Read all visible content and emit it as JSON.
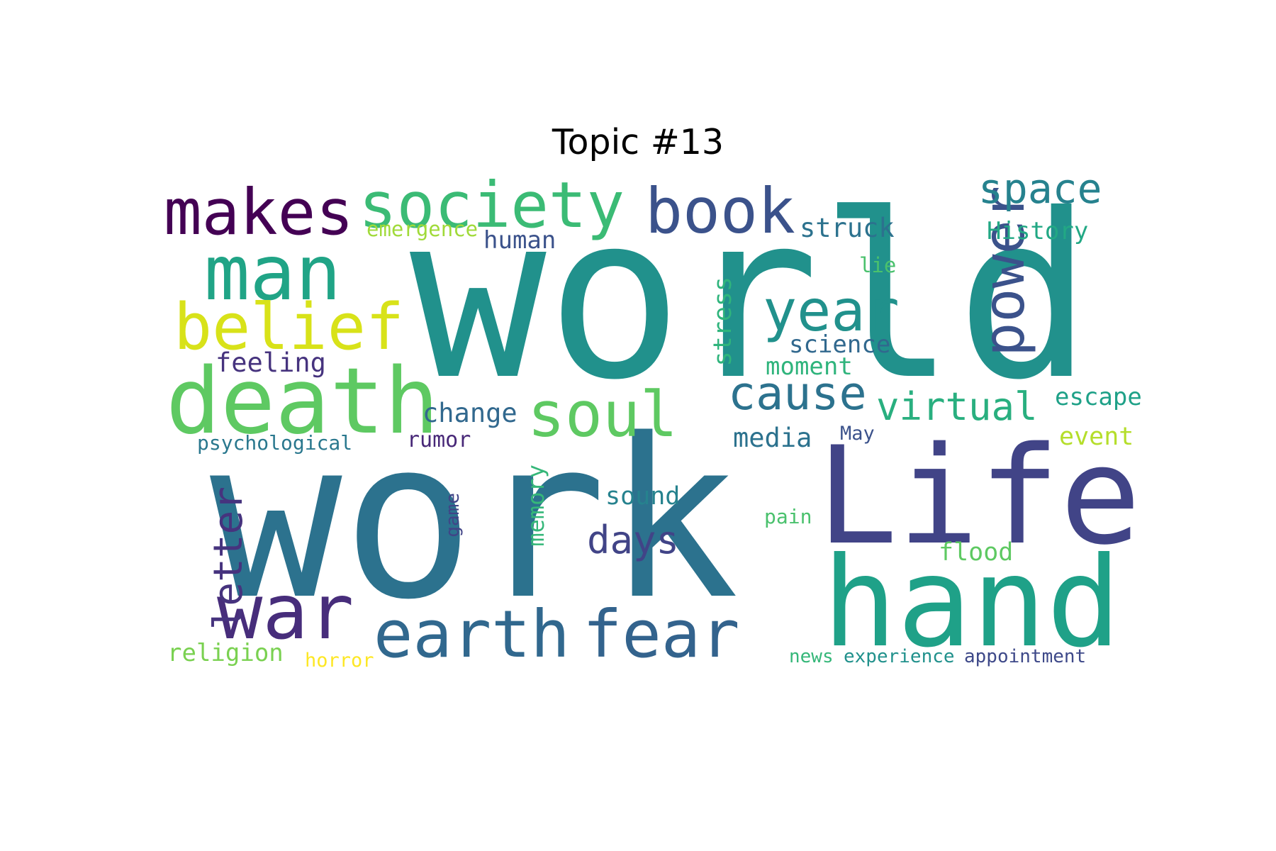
{
  "title": "Topic #13",
  "words": [
    {
      "text": "world",
      "color": "#21918c",
      "vertical": false
    },
    {
      "text": "work",
      "color": "#2c728e",
      "vertical": false
    },
    {
      "text": "Life",
      "color": "#414487",
      "vertical": false
    },
    {
      "text": "hand",
      "color": "#1fa188",
      "vertical": false
    },
    {
      "text": "earth",
      "color": "#31688e",
      "vertical": false
    },
    {
      "text": "fear",
      "color": "#33638d",
      "vertical": false
    },
    {
      "text": "death",
      "color": "#5ec962",
      "vertical": false
    },
    {
      "text": "man",
      "color": "#20a486",
      "vertical": false
    },
    {
      "text": "war",
      "color": "#472d7b",
      "vertical": false
    },
    {
      "text": "society",
      "color": "#3bbb75",
      "vertical": false
    },
    {
      "text": "makes",
      "color": "#440154",
      "vertical": false
    },
    {
      "text": "book",
      "color": "#3b528b",
      "vertical": false
    },
    {
      "text": "belief",
      "color": "#d8e219",
      "vertical": false
    },
    {
      "text": "year",
      "color": "#21918c",
      "vertical": false
    },
    {
      "text": "power",
      "color": "#3b528b",
      "vertical": true
    },
    {
      "text": "soul",
      "color": "#5ec962",
      "vertical": false
    },
    {
      "text": "cause",
      "color": "#2c728e",
      "vertical": false
    },
    {
      "text": "space",
      "color": "#26828e",
      "vertical": false
    },
    {
      "text": "virtual",
      "color": "#29af7f",
      "vertical": false
    },
    {
      "text": "days",
      "color": "#414487",
      "vertical": false
    },
    {
      "text": "letter",
      "color": "#46337e",
      "vertical": true
    },
    {
      "text": "struck",
      "color": "#2c728e",
      "vertical": false
    },
    {
      "text": "History",
      "color": "#22a884",
      "vertical": false
    },
    {
      "text": "human",
      "color": "#3b528b",
      "vertical": false
    },
    {
      "text": "emergence",
      "color": "#a0da39",
      "vertical": false
    },
    {
      "text": "lie",
      "color": "#4ac16d",
      "vertical": false
    },
    {
      "text": "science",
      "color": "#31688e",
      "vertical": false
    },
    {
      "text": "moment",
      "color": "#2fb47c",
      "vertical": false
    },
    {
      "text": "stress",
      "color": "#2fb47c",
      "vertical": true
    },
    {
      "text": "feeling",
      "color": "#46337e",
      "vertical": false
    },
    {
      "text": "change",
      "color": "#31688e",
      "vertical": false
    },
    {
      "text": "escape",
      "color": "#1fa188",
      "vertical": false
    },
    {
      "text": "media",
      "color": "#2c728e",
      "vertical": false
    },
    {
      "text": "May",
      "color": "#3b528b",
      "vertical": false
    },
    {
      "text": "event",
      "color": "#b5de2b",
      "vertical": false
    },
    {
      "text": "psychological",
      "color": "#2a788e",
      "vertical": false
    },
    {
      "text": "rumor",
      "color": "#482878",
      "vertical": false
    },
    {
      "text": "sound",
      "color": "#26828e",
      "vertical": false
    },
    {
      "text": "memory",
      "color": "#35b779",
      "vertical": true
    },
    {
      "text": "game",
      "color": "#414487",
      "vertical": true
    },
    {
      "text": "pain",
      "color": "#4ac16d",
      "vertical": false
    },
    {
      "text": "flood",
      "color": "#5ec962",
      "vertical": false
    },
    {
      "text": "religion",
      "color": "#7ad151",
      "vertical": false
    },
    {
      "text": "horror",
      "color": "#fde725",
      "vertical": false
    },
    {
      "text": "news",
      "color": "#35b779",
      "vertical": false
    },
    {
      "text": "experience",
      "color": "#21918c",
      "vertical": false
    },
    {
      "text": "appointment",
      "color": "#3e4989",
      "vertical": false
    }
  ]
}
